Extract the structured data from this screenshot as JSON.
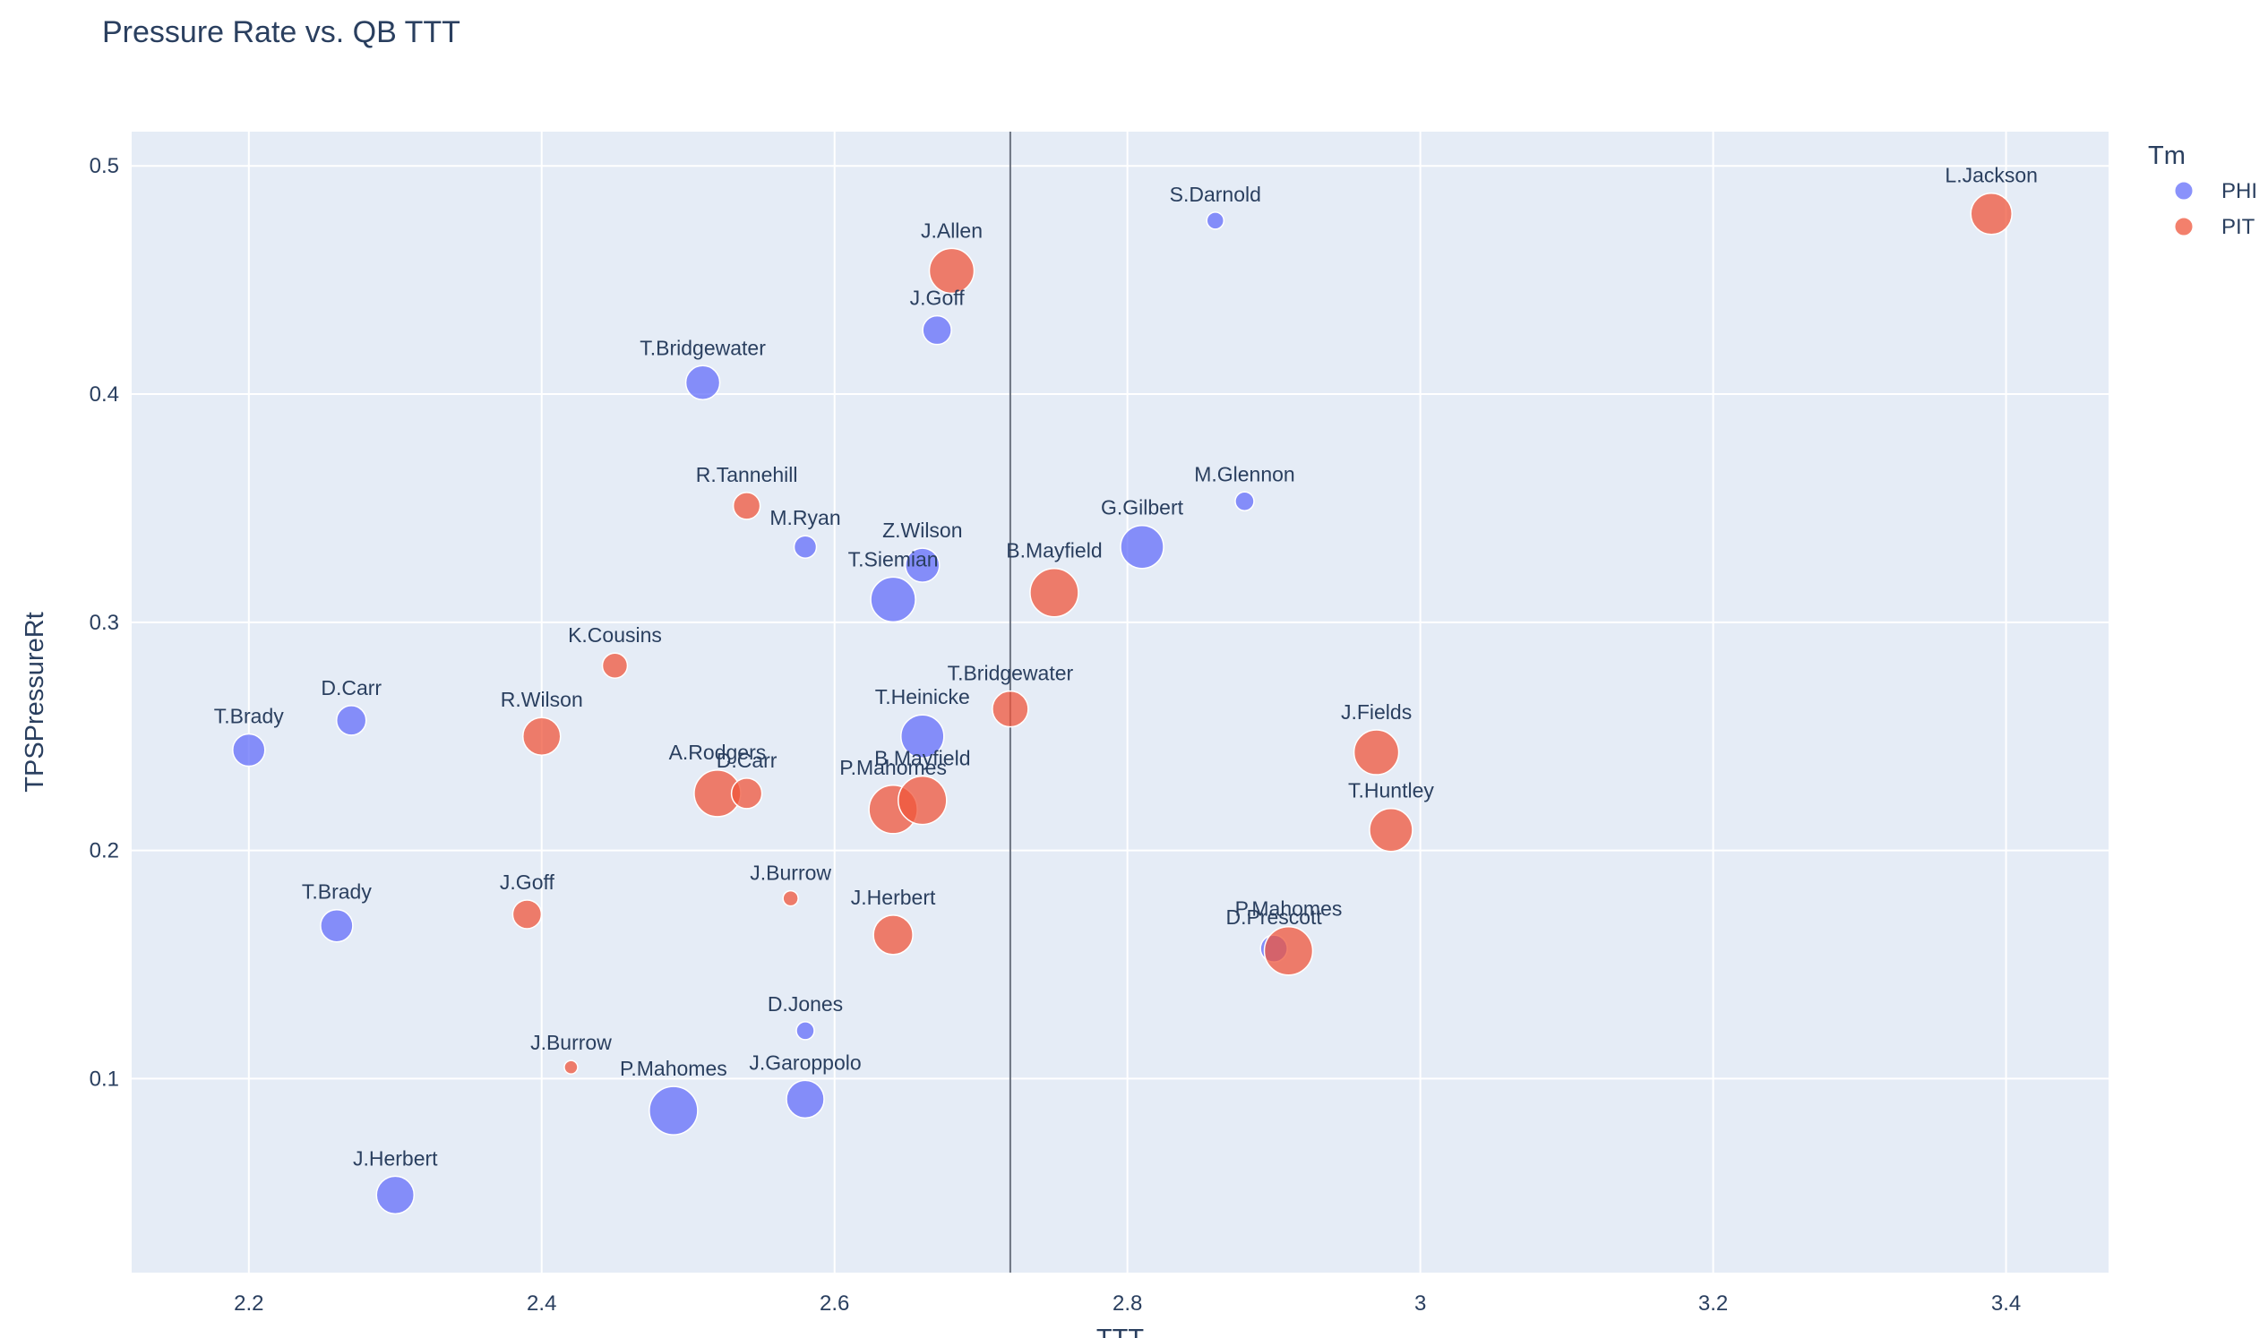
{
  "chart_data": {
    "type": "scatter",
    "title": "Pressure Rate vs. QB TTT",
    "xlabel": "TTT",
    "ylabel": "TPSPressureRt",
    "xlim": [
      2.12,
      3.47
    ],
    "ylim": [
      0.015,
      0.515
    ],
    "x_ticks": [
      2.2,
      2.4,
      2.6,
      2.8,
      3.0,
      3.2,
      3.4
    ],
    "x_tick_labels": [
      "2.2",
      "2.4",
      "2.6",
      "2.8",
      "3",
      "3.2",
      "3.4"
    ],
    "y_ticks": [
      0.1,
      0.2,
      0.3,
      0.4,
      0.5
    ],
    "y_tick_labels": [
      "0.1",
      "0.2",
      "0.3",
      "0.4",
      "0.5"
    ],
    "grid": true,
    "vline_x": 2.72,
    "legend": {
      "title": "Tm",
      "position": "top-right"
    },
    "series": [
      {
        "name": "PHI",
        "color": "#636efa",
        "points": [
          {
            "label": "T.Brady",
            "x": 2.2,
            "y": 0.244,
            "size": 36
          },
          {
            "label": "D.Carr",
            "x": 2.27,
            "y": 0.257,
            "size": 33
          },
          {
            "label": "T.Brady",
            "x": 2.26,
            "y": 0.167,
            "size": 36
          },
          {
            "label": "J.Herbert",
            "x": 2.3,
            "y": 0.049,
            "size": 42
          },
          {
            "label": "P.Mahomes",
            "x": 2.49,
            "y": 0.086,
            "size": 54
          },
          {
            "label": "T.Bridgewater",
            "x": 2.51,
            "y": 0.405,
            "size": 38
          },
          {
            "label": "M.Ryan",
            "x": 2.58,
            "y": 0.333,
            "size": 25
          },
          {
            "label": "D.Jones",
            "x": 2.58,
            "y": 0.121,
            "size": 20
          },
          {
            "label": "J.Garoppolo",
            "x": 2.58,
            "y": 0.091,
            "size": 42
          },
          {
            "label": "T.Siemian",
            "x": 2.64,
            "y": 0.31,
            "size": 50
          },
          {
            "label": "Z.Wilson",
            "x": 2.66,
            "y": 0.325,
            "size": 38
          },
          {
            "label": "T.Heinicke",
            "x": 2.66,
            "y": 0.25,
            "size": 48
          },
          {
            "label": "J.Goff",
            "x": 2.67,
            "y": 0.428,
            "size": 32
          },
          {
            "label": "G.Gilbert",
            "x": 2.81,
            "y": 0.333,
            "size": 48
          },
          {
            "label": "S.Darnold",
            "x": 2.86,
            "y": 0.476,
            "size": 19
          },
          {
            "label": "M.Glennon",
            "x": 2.88,
            "y": 0.353,
            "size": 21
          },
          {
            "label": "D.Prescott",
            "x": 2.9,
            "y": 0.157,
            "size": 30
          }
        ]
      },
      {
        "name": "PIT",
        "color": "#ef553b",
        "points": [
          {
            "label": "J.Goff",
            "x": 2.39,
            "y": 0.172,
            "size": 32
          },
          {
            "label": "R.Wilson",
            "x": 2.4,
            "y": 0.25,
            "size": 42
          },
          {
            "label": "J.Burrow",
            "x": 2.42,
            "y": 0.105,
            "size": 15
          },
          {
            "label": "K.Cousins",
            "x": 2.45,
            "y": 0.281,
            "size": 28
          },
          {
            "label": "A.Rodgers",
            "x": 2.52,
            "y": 0.225,
            "size": 52
          },
          {
            "label": "D.Carr",
            "x": 2.54,
            "y": 0.225,
            "size": 34
          },
          {
            "label": "R.Tannehill",
            "x": 2.54,
            "y": 0.351,
            "size": 30
          },
          {
            "label": "J.Burrow",
            "x": 2.57,
            "y": 0.179,
            "size": 17
          },
          {
            "label": "P.Mahomes",
            "x": 2.64,
            "y": 0.218,
            "size": 54
          },
          {
            "label": "J.Herbert",
            "x": 2.64,
            "y": 0.163,
            "size": 44
          },
          {
            "label": "B.Mayfield",
            "x": 2.66,
            "y": 0.222,
            "size": 54
          },
          {
            "label": "J.Allen",
            "x": 2.68,
            "y": 0.454,
            "size": 50
          },
          {
            "label": "T.Bridgewater",
            "x": 2.72,
            "y": 0.262,
            "size": 40
          },
          {
            "label": "B.Mayfield",
            "x": 2.75,
            "y": 0.313,
            "size": 54
          },
          {
            "label": "P.Mahomes",
            "x": 2.91,
            "y": 0.156,
            "size": 54
          },
          {
            "label": "J.Fields",
            "x": 2.97,
            "y": 0.243,
            "size": 50
          },
          {
            "label": "T.Huntley",
            "x": 2.98,
            "y": 0.209,
            "size": 48
          },
          {
            "label": "L.Jackson",
            "x": 3.39,
            "y": 0.479,
            "size": 46
          }
        ]
      }
    ]
  }
}
